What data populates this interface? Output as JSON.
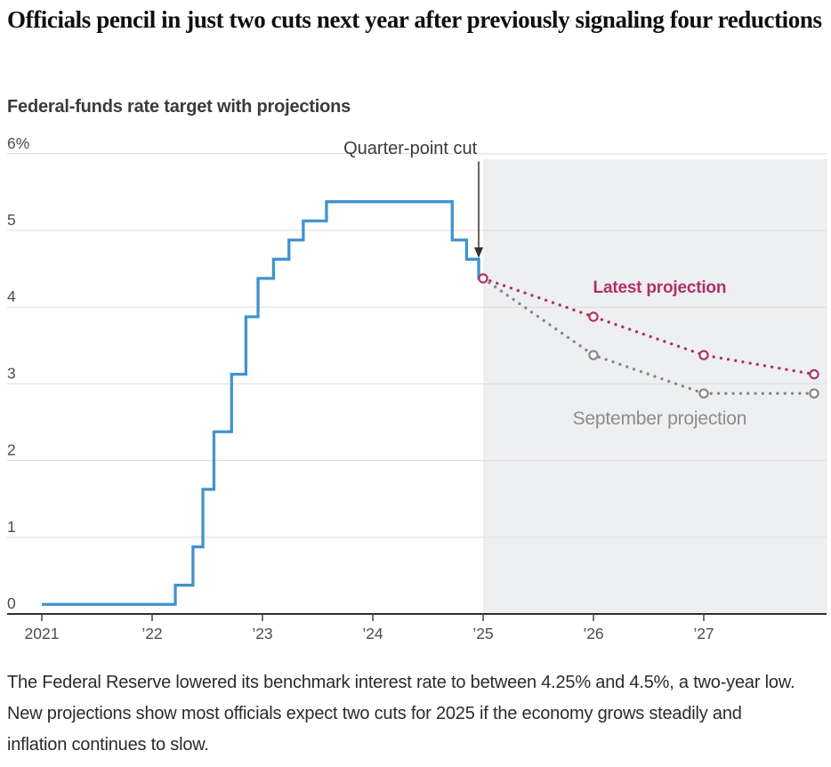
{
  "headline": "Officials pencil in just two cuts next year after previously signaling four reductions",
  "subtitle": "Federal-funds rate target with projections",
  "caption": "The Federal Reserve lowered its benchmark interest rate to between 4.25% and 4.5%, a two-year low. New projections show most officials expect two cuts for 2025 if the economy grows steadily and inflation continues to slow.",
  "colors": {
    "rate_line": "#4193cf",
    "latest_projection": "#b03169",
    "september_projection": "#878787",
    "shading": "#eeeff0",
    "gridline": "#dcdcdc",
    "axis": "#2e2e2e",
    "tick_text": "#4d4d4d",
    "annotation_text": "#3a3a3a"
  },
  "chart_data": {
    "type": "line",
    "title": "Federal-funds rate target with projections",
    "xlabel": "",
    "ylabel": "",
    "ylim": [
      0,
      6
    ],
    "xlim": [
      2020.68,
      2028.12
    ],
    "grid": "horizontal",
    "legend_position": "inline-labels",
    "y_ticks": [
      {
        "value": 0,
        "label": "0"
      },
      {
        "value": 1,
        "label": "1"
      },
      {
        "value": 2,
        "label": "2"
      },
      {
        "value": 3,
        "label": "3"
      },
      {
        "value": 4,
        "label": "4"
      },
      {
        "value": 5,
        "label": "5"
      },
      {
        "value": 6,
        "label": "6%"
      }
    ],
    "x_ticks": [
      {
        "value": 2021,
        "label": "2021"
      },
      {
        "value": 2022,
        "label": "’22"
      },
      {
        "value": 2023,
        "label": "’23"
      },
      {
        "value": 2024,
        "label": "’24"
      },
      {
        "value": 2025,
        "label": "’25"
      },
      {
        "value": 2026,
        "label": "’26"
      },
      {
        "value": 2027,
        "label": "’27"
      }
    ],
    "shaded_region": {
      "from": 2025.0,
      "to": 2028.12,
      "color": "#eeeff0"
    },
    "annotation": {
      "text": "Quarter-point cut",
      "text_x": 2024.34,
      "text_value": 6.0,
      "arrow_x": 2024.98,
      "arrow_from_value": 5.9,
      "arrow_to_value": 4.64
    },
    "series": [
      {
        "name": "Federal-funds rate target",
        "style": "step",
        "color": "#4193cf",
        "markers": "none",
        "points": [
          [
            2021.0,
            0.125
          ],
          [
            2022.21,
            0.375
          ],
          [
            2022.37,
            0.875
          ],
          [
            2022.46,
            1.625
          ],
          [
            2022.56,
            2.375
          ],
          [
            2022.72,
            3.125
          ],
          [
            2022.85,
            3.875
          ],
          [
            2022.96,
            4.375
          ],
          [
            2023.1,
            4.625
          ],
          [
            2023.24,
            4.875
          ],
          [
            2023.37,
            5.125
          ],
          [
            2023.58,
            5.375
          ],
          [
            2024.72,
            4.875
          ],
          [
            2024.85,
            4.625
          ],
          [
            2024.96,
            4.375
          ],
          [
            2025.0,
            4.375
          ]
        ]
      },
      {
        "name": "Latest projection",
        "style": "dotted",
        "color": "#b03169",
        "markers": "all",
        "points": [
          [
            2025.0,
            4.375
          ],
          [
            2026.0,
            3.875
          ],
          [
            2027.0,
            3.375
          ],
          [
            2028.0,
            3.125
          ]
        ],
        "label": {
          "text": "Latest projection",
          "x": 2026.6,
          "value": 4.19,
          "bold": true,
          "color": "#b03169",
          "size": 19
        }
      },
      {
        "name": "September projection",
        "style": "dotted",
        "color": "#878787",
        "markers": "skip-first",
        "points": [
          [
            2025.0,
            4.375
          ],
          [
            2026.0,
            3.375
          ],
          [
            2027.0,
            2.875
          ],
          [
            2028.0,
            2.875
          ]
        ],
        "label": {
          "text": "September projection",
          "x": 2026.6,
          "value": 2.47,
          "bold": false,
          "color": "#8c8c8c",
          "size": 21
        }
      }
    ]
  }
}
